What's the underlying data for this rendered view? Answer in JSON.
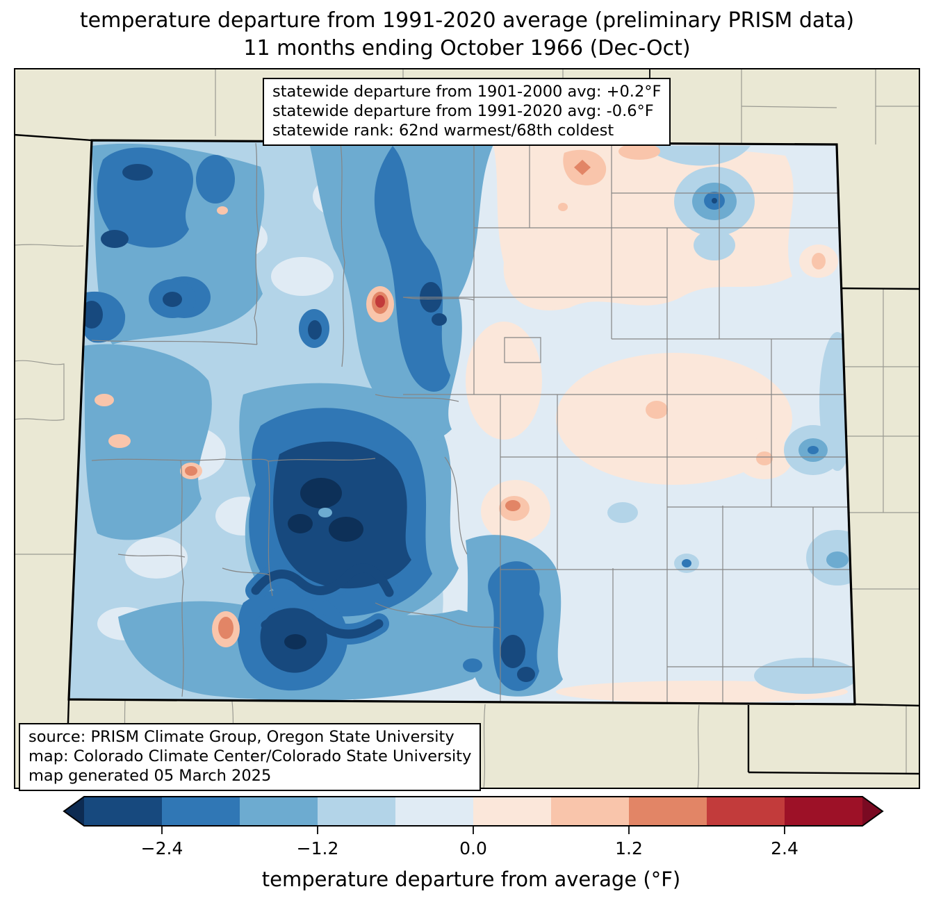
{
  "title": {
    "line1": "temperature departure from 1991-2020 average (preliminary PRISM data)",
    "line2": "11 months ending October 1966 (Dec-Oct)"
  },
  "stats_box": {
    "line1": "statewide departure from 1901-2000 avg: +0.2°F",
    "line2": "statewide departure from 1991-2020 avg: -0.6°F",
    "line3": "statewide rank: 62nd warmest/68th coldest"
  },
  "source_box": {
    "line1": "source: PRISM Climate Group, Oregon State University",
    "line2": "map: Colorado Climate Center/Colorado State University",
    "line3": "map generated 05 March 2025"
  },
  "colorbar": {
    "label": "temperature departure from average (°F)",
    "ticks": [
      "−2.4",
      "−1.2",
      "0.0",
      "1.2",
      "2.4"
    ],
    "segment_colors": [
      "#17497e",
      "#3077b5",
      "#6dabd0",
      "#b3d4e8",
      "#e0ebf4",
      "#fbe7da",
      "#f9c5ab",
      "#e28566",
      "#c23b3b",
      "#9d1127"
    ],
    "extend_left_color": "#0d2b52",
    "extend_right_color": "#7a0a22"
  },
  "map": {
    "background_color": "#eae8d4",
    "state_border_color": "#000000",
    "county_line_color": "#858585",
    "palette": {
      "coldest": "#0d3058",
      "cold4": "#17497e",
      "cold3": "#3077b5",
      "cold2": "#6dabd0",
      "cold1": "#b3d4e8",
      "near_zero_cool": "#e0ebf4",
      "near_zero_warm": "#fbe7da",
      "warm1": "#f9c5ab",
      "warm2": "#e28566",
      "warm3": "#c23b3b"
    }
  }
}
